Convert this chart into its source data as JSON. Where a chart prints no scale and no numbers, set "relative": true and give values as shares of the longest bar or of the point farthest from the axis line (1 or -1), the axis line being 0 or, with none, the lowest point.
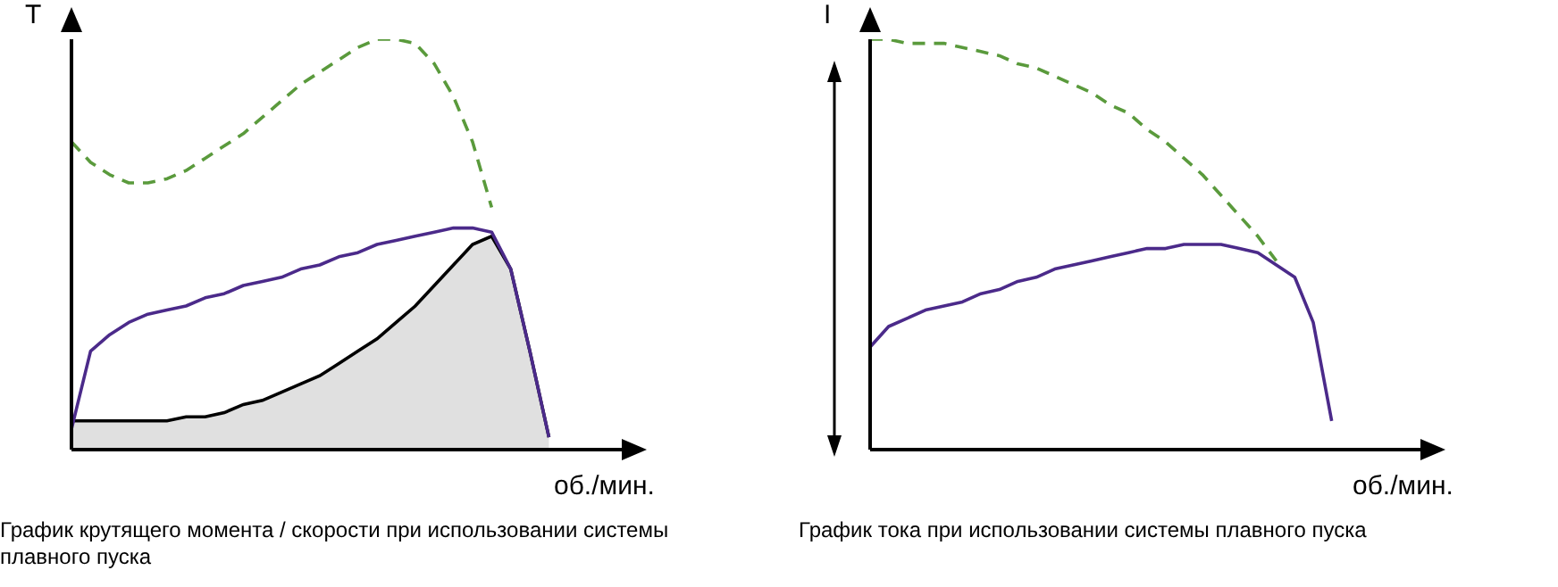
{
  "chart_data": [
    {
      "type": "line",
      "relative": true,
      "ylabel": "T",
      "xlabel": "об./мин.",
      "legend": false,
      "marker": "none",
      "annotations": [
        "График крутящего момента / скорости при использовании системы плавного пуска"
      ],
      "categories": [
        null,
        null,
        null,
        null,
        null,
        null,
        null,
        null,
        null,
        null,
        null,
        null,
        null,
        null,
        null,
        null,
        null,
        null,
        null,
        null,
        null,
        null,
        null,
        null,
        null,
        null,
        null,
        null,
        null,
        null
      ],
      "series": [
        {
          "type": "area",
          "color": "#e0e0e0",
          "values": [
            0.07,
            0.07,
            0.07,
            0.07,
            0.07,
            0.07,
            0.08,
            0.08,
            0.09,
            0.11,
            0.12,
            0.14,
            0.16,
            0.18,
            0.21,
            0.24,
            0.27,
            0.31,
            0.35,
            0.4,
            0.45,
            0.5,
            0.52,
            0.44,
            0.24,
            0.03,
            null,
            null,
            null,
            null
          ]
        },
        {
          "color": "#4b2a8a",
          "values": [
            0.05,
            0.24,
            0.28,
            0.31,
            0.33,
            0.34,
            0.35,
            0.37,
            0.38,
            0.4,
            0.41,
            0.42,
            0.44,
            0.45,
            0.47,
            0.48,
            0.5,
            0.51,
            0.52,
            0.53,
            0.54,
            0.54,
            0.53,
            0.44,
            0.24,
            0.03,
            null,
            null,
            null,
            null
          ]
        },
        {
          "color": "#5a9a3c",
          "line_style": "dashed",
          "values": [
            0.75,
            0.7,
            0.67,
            0.65,
            0.65,
            0.66,
            0.68,
            0.71,
            0.74,
            0.77,
            0.81,
            0.85,
            0.89,
            0.92,
            0.95,
            0.98,
            1.0,
            1.0,
            0.99,
            0.94,
            0.86,
            0.75,
            0.59,
            null,
            null,
            null,
            null,
            null,
            null,
            null
          ]
        }
      ]
    },
    {
      "type": "line",
      "relative": true,
      "ylabel": "I",
      "xlabel": "об./мин.",
      "legend": false,
      "marker": "none",
      "annotations": [
        "График тока при использовании системы плавного пуска"
      ],
      "categories": [
        null,
        null,
        null,
        null,
        null,
        null,
        null,
        null,
        null,
        null,
        null,
        null,
        null,
        null,
        null,
        null,
        null,
        null,
        null,
        null,
        null,
        null,
        null,
        null,
        null,
        null,
        null,
        null,
        null,
        null,
        null
      ],
      "series": [
        {
          "color": "#4b2a8a",
          "values": [
            0.25,
            0.3,
            0.32,
            0.34,
            0.35,
            0.36,
            0.38,
            0.39,
            0.41,
            0.42,
            0.44,
            0.45,
            0.46,
            0.47,
            0.48,
            0.49,
            0.49,
            0.5,
            0.5,
            0.5,
            0.49,
            0.48,
            0.45,
            0.42,
            0.31,
            0.07,
            null,
            null,
            null,
            null,
            null
          ]
        },
        {
          "color": "#5a9a3c",
          "line_style": "dashed",
          "values": [
            1.0,
            1.0,
            0.99,
            0.99,
            0.99,
            0.98,
            0.97,
            0.96,
            0.94,
            0.93,
            0.91,
            0.89,
            0.87,
            0.84,
            0.82,
            0.78,
            0.75,
            0.71,
            0.67,
            0.62,
            0.57,
            0.52,
            0.46,
            null,
            null,
            null,
            null,
            null,
            null,
            null,
            null
          ]
        }
      ]
    }
  ]
}
